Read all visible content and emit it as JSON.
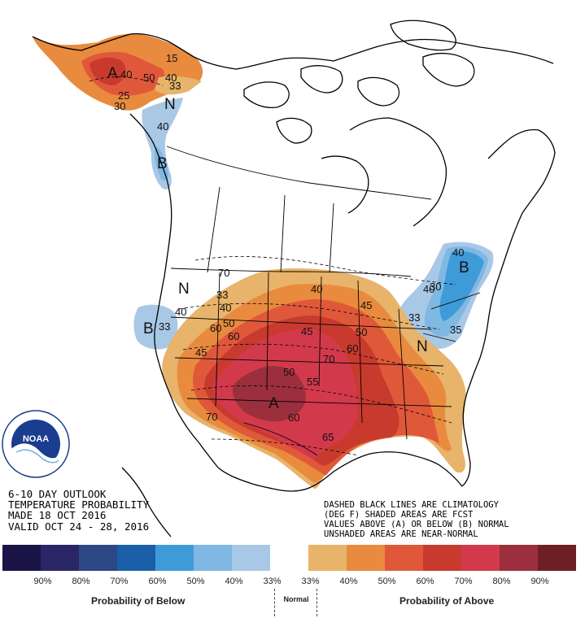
{
  "title_block": {
    "line1": "6-10 DAY OUTLOOK",
    "line2": "TEMPERATURE PROBABILITY",
    "line3": "MADE  18 OCT 2016",
    "line4": "VALID  OCT 24 - 28, 2016"
  },
  "notes": {
    "line1": "DASHED BLACK LINES ARE CLIMATOLOGY",
    "line2": "(DEG F) SHADED AREAS ARE FCST",
    "line3": "VALUES ABOVE (A) OR BELOW (B) NORMAL",
    "line4": "UNSHADED AREAS ARE NEAR-NORMAL"
  },
  "logo": {
    "text": "NOAA",
    "ring_text": "NATIONAL OCEANIC AND ATMOSPHERIC ADMINISTRATION · U.S. DEPARTMENT OF COMMERCE"
  },
  "map_labels": {
    "above": "A",
    "below": "B",
    "normal": "N"
  },
  "contour_labels": [
    "40",
    "50",
    "40",
    "33",
    "15",
    "25",
    "30",
    "40",
    "33",
    "40",
    "50",
    "60",
    "45",
    "40",
    "45",
    "50",
    "60",
    "70",
    "55",
    "60",
    "65",
    "70",
    "45",
    "50",
    "60",
    "33",
    "40",
    "35",
    "40",
    "30",
    "33",
    "40",
    "70"
  ],
  "legend": {
    "colors": [
      "#1b1446",
      "#2a2564",
      "#2e4785",
      "#1b5fa8",
      "#3f9bd8",
      "#7fb8e2",
      "#a8c8e6",
      "#ffffff",
      "#e8b36a",
      "#e88b3e",
      "#e0583a",
      "#c83a2e",
      "#d23a4c",
      "#9b2f3e",
      "#6e1f24"
    ],
    "percent_labels": [
      "90%",
      "80%",
      "70%",
      "60%",
      "50%",
      "40%",
      "33%",
      "33%",
      "40%",
      "50%",
      "60%",
      "70%",
      "80%",
      "90%"
    ],
    "below_caption": "Probability of Below",
    "normal_caption": "Normal",
    "above_caption": "Probability of Above"
  }
}
